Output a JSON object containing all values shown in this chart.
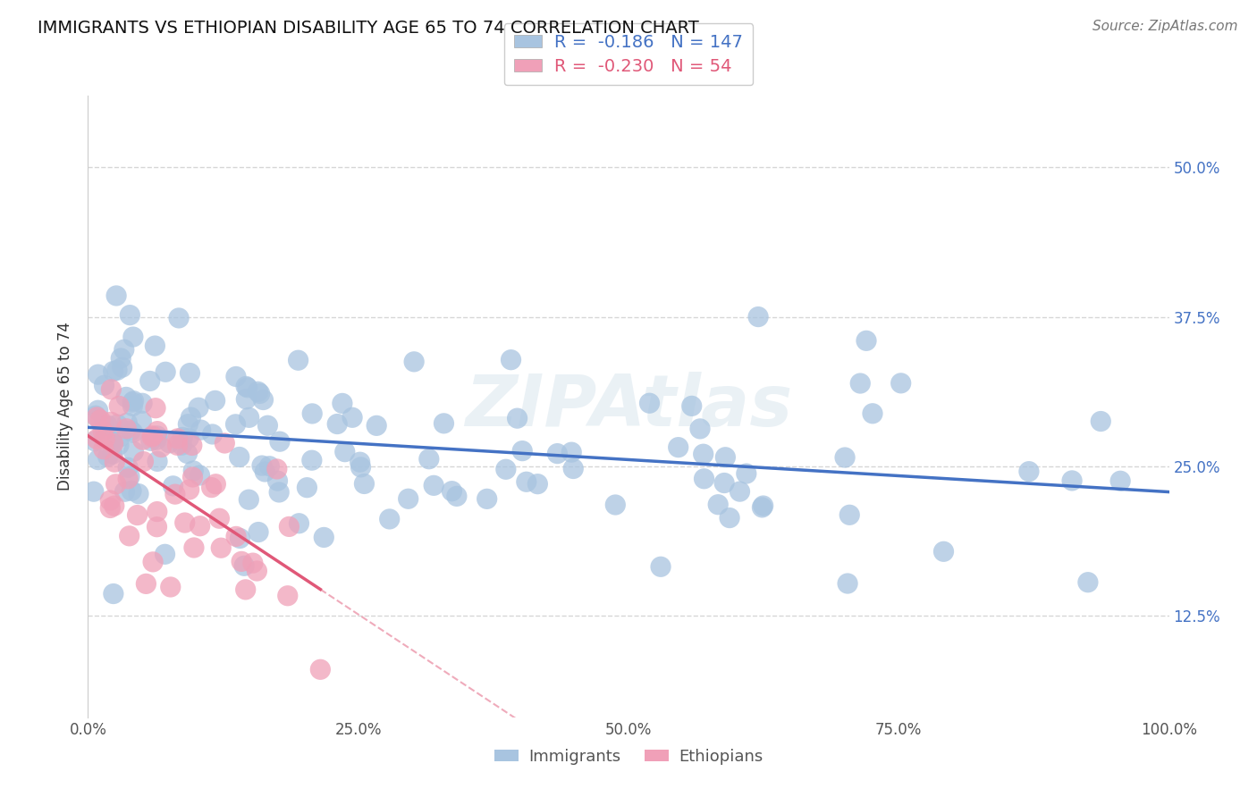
{
  "title": "IMMIGRANTS VS ETHIOPIAN DISABILITY AGE 65 TO 74 CORRELATION CHART",
  "source": "Source: ZipAtlas.com",
  "ylabel": "Disability Age 65 to 74",
  "xlim": [
    0.0,
    1.0
  ],
  "ylim": [
    0.04,
    0.56
  ],
  "yticks": [
    0.125,
    0.25,
    0.375,
    0.5
  ],
  "ytick_labels": [
    "12.5%",
    "25.0%",
    "37.5%",
    "50.0%"
  ],
  "xticks": [
    0.0,
    0.25,
    0.5,
    0.75,
    1.0
  ],
  "xtick_labels": [
    "0.0%",
    "25.0%",
    "50.0%",
    "75.0%",
    "100.0%"
  ],
  "grid_color": "#cccccc",
  "bg_color": "#ffffff",
  "immigrants_color": "#a8c4e0",
  "ethiopians_color": "#f0a0b8",
  "immigrants_line_color": "#4472c4",
  "ethiopians_line_color": "#e05878",
  "immigrants_R": -0.186,
  "immigrants_N": 147,
  "ethiopians_R": -0.23,
  "ethiopians_N": 54,
  "watermark": "ZIPAtlas",
  "legend_immigrants_label": "Immigrants",
  "legend_ethiopians_label": "Ethiopians",
  "title_fontsize": 14,
  "tick_fontsize": 12,
  "ylabel_fontsize": 12,
  "source_fontsize": 11
}
